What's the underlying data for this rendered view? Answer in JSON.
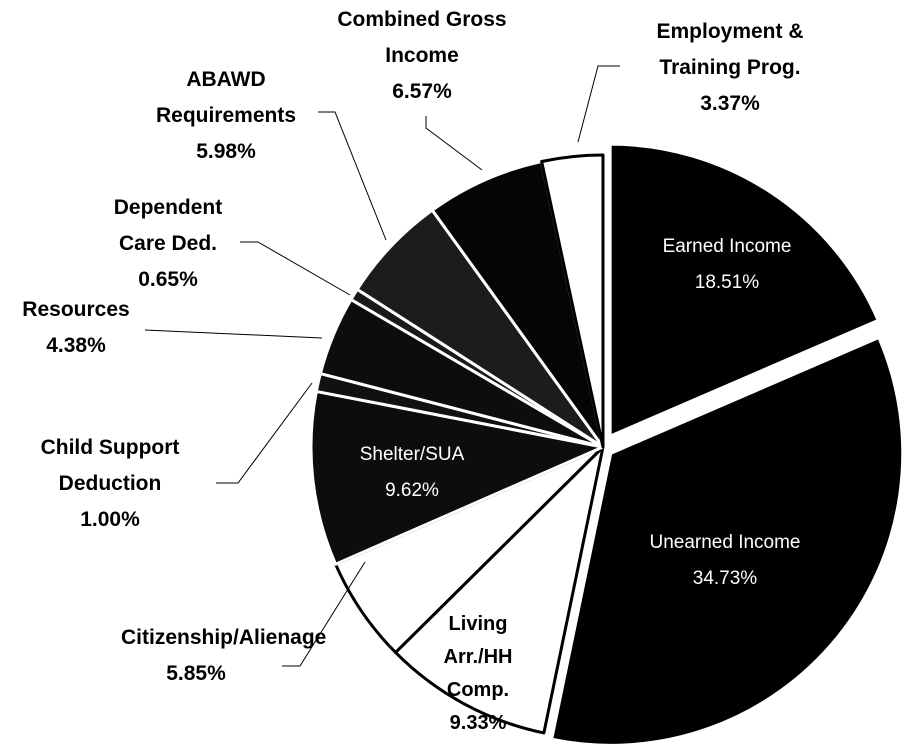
{
  "chart_data": {
    "type": "pie",
    "categories": [
      "Earned Income",
      "Unearned Income",
      "Living Arr./HH Comp.",
      "Citizenship/Alienage",
      "Shelter/SUA",
      "Child Support Deduction",
      "Resources",
      "Dependent Care Ded.",
      "ABAWD Requirements",
      "Combined Gross Income",
      "Employment & Training Prog."
    ],
    "values": [
      18.51,
      34.73,
      9.33,
      5.85,
      9.62,
      1.0,
      4.38,
      0.65,
      5.98,
      6.57,
      3.37
    ],
    "value_labels": [
      "18.51%",
      "34.73%",
      "9.33%",
      "5.85%",
      "9.62%",
      "1.00%",
      "4.38%",
      "0.65%",
      "5.98%",
      "6.57%",
      "3.37%"
    ],
    "colors": [
      "#000000",
      "#000000",
      "#ffffff",
      "#ffffff",
      "#0d0d0d",
      "#111111",
      "#0d0d0d",
      "#1a1a1a",
      "#1c1c1c",
      "#050505",
      "#ffffff"
    ]
  }
}
